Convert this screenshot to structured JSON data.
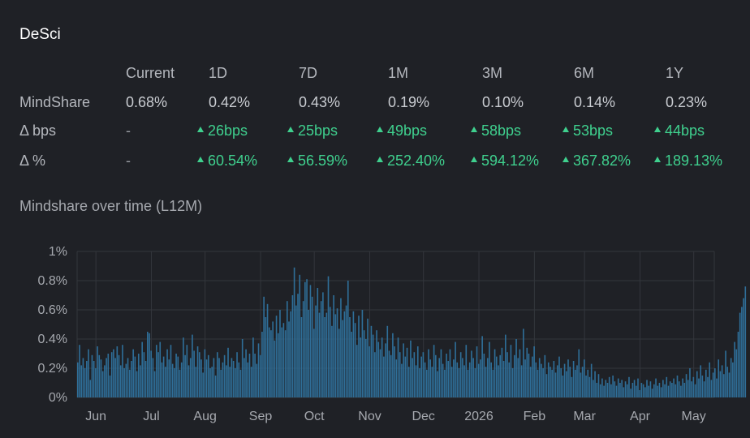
{
  "title": "DeSci",
  "table": {
    "columns": [
      "Current",
      "1D",
      "7D",
      "1M",
      "3M",
      "6M",
      "1Y"
    ],
    "rows": [
      {
        "label": "MindShare",
        "values": [
          "0.68%",
          "0.42%",
          "0.43%",
          "0.19%",
          "0.10%",
          "0.14%",
          "0.23%"
        ],
        "up": [
          false,
          false,
          false,
          false,
          false,
          false,
          false
        ]
      },
      {
        "label": "Δ bps",
        "values": [
          "-",
          "26bps",
          "25bps",
          "49bps",
          "58bps",
          "53bps",
          "44bps"
        ],
        "up": [
          false,
          true,
          true,
          true,
          true,
          true,
          true
        ]
      },
      {
        "label": "Δ %",
        "values": [
          "-",
          "60.54%",
          "56.59%",
          "252.40%",
          "594.12%",
          "367.82%",
          "189.13%"
        ],
        "up": [
          false,
          true,
          true,
          true,
          true,
          true,
          true
        ]
      }
    ]
  },
  "chart_title": "Mindshare over time (L12M)",
  "colors": {
    "background": "#1f2126",
    "bar": "#2f6f99",
    "up": "#3fd08e",
    "grid": "#33363c"
  },
  "chart_data": {
    "type": "bar",
    "title": "Mindshare over time (L12M)",
    "y_tick_labels": [
      "0%",
      "0.2%",
      "0.4%",
      "0.6%",
      "0.8%",
      "1%"
    ],
    "ylim": [
      0,
      1
    ],
    "y_unit": "%",
    "grid": true,
    "x_tick_labels": [
      "Jun",
      "Jul",
      "Aug",
      "Sep",
      "Oct",
      "Nov",
      "Dec",
      "2026",
      "Feb",
      "Mar",
      "Apr",
      "May"
    ],
    "x_tick_positions": [
      10,
      41,
      71,
      102,
      132,
      163,
      193,
      224,
      255,
      283,
      314,
      344
    ],
    "days": 356,
    "series": [
      {
        "values": [
          0.24,
          0.36,
          0.22,
          0.27,
          0.2,
          0.25,
          0.33,
          0.12,
          0.29,
          0.25,
          0.2,
          0.35,
          0.29,
          0.26,
          0.18,
          0.22,
          0.27,
          0.3,
          0.15,
          0.31,
          0.33,
          0.27,
          0.35,
          0.29,
          0.22,
          0.36,
          0.2,
          0.23,
          0.27,
          0.19,
          0.25,
          0.33,
          0.28,
          0.18,
          0.3,
          0.22,
          0.38,
          0.31,
          0.25,
          0.45,
          0.44,
          0.32,
          0.27,
          0.18,
          0.36,
          0.31,
          0.38,
          0.24,
          0.28,
          0.21,
          0.33,
          0.26,
          0.36,
          0.23,
          0.2,
          0.3,
          0.28,
          0.19,
          0.24,
          0.41,
          0.29,
          0.36,
          0.22,
          0.27,
          0.43,
          0.32,
          0.21,
          0.35,
          0.31,
          0.26,
          0.17,
          0.33,
          0.26,
          0.29,
          0.2,
          0.21,
          0.27,
          0.15,
          0.31,
          0.27,
          0.19,
          0.24,
          0.29,
          0.22,
          0.34,
          0.21,
          0.27,
          0.25,
          0.2,
          0.31,
          0.24,
          0.19,
          0.4,
          0.27,
          0.33,
          0.24,
          0.3,
          0.21,
          0.41,
          0.3,
          0.23,
          0.37,
          0.29,
          0.45,
          0.69,
          0.55,
          0.64,
          0.48,
          0.46,
          0.52,
          0.39,
          0.56,
          0.44,
          0.6,
          0.48,
          0.51,
          0.46,
          0.66,
          0.52,
          0.59,
          0.7,
          0.89,
          0.63,
          0.71,
          0.84,
          0.55,
          0.66,
          0.79,
          0.81,
          0.6,
          0.77,
          0.69,
          0.47,
          0.63,
          0.75,
          0.58,
          0.66,
          0.72,
          0.55,
          0.58,
          0.83,
          0.62,
          0.49,
          0.7,
          0.57,
          0.61,
          0.47,
          0.68,
          0.53,
          0.59,
          0.63,
          0.8,
          0.55,
          0.45,
          0.59,
          0.51,
          0.36,
          0.56,
          0.41,
          0.6,
          0.46,
          0.4,
          0.54,
          0.35,
          0.49,
          0.43,
          0.31,
          0.46,
          0.38,
          0.33,
          0.41,
          0.28,
          0.37,
          0.49,
          0.32,
          0.29,
          0.44,
          0.35,
          0.26,
          0.41,
          0.31,
          0.23,
          0.37,
          0.28,
          0.34,
          0.21,
          0.39,
          0.27,
          0.31,
          0.22,
          0.35,
          0.2,
          0.28,
          0.31,
          0.24,
          0.19,
          0.33,
          0.26,
          0.21,
          0.36,
          0.29,
          0.18,
          0.27,
          0.33,
          0.23,
          0.19,
          0.3,
          0.25,
          0.33,
          0.21,
          0.26,
          0.38,
          0.24,
          0.2,
          0.31,
          0.27,
          0.22,
          0.36,
          0.19,
          0.24,
          0.32,
          0.27,
          0.2,
          0.35,
          0.23,
          0.26,
          0.42,
          0.3,
          0.21,
          0.27,
          0.38,
          0.24,
          0.19,
          0.33,
          0.28,
          0.22,
          0.29,
          0.34,
          0.25,
          0.43,
          0.31,
          0.24,
          0.36,
          0.2,
          0.29,
          0.4,
          0.27,
          0.33,
          0.22,
          0.47,
          0.26,
          0.34,
          0.3,
          0.21,
          0.28,
          0.35,
          0.24,
          0.19,
          0.27,
          0.23,
          0.2,
          0.29,
          0.16,
          0.24,
          0.21,
          0.19,
          0.25,
          0.17,
          0.22,
          0.28,
          0.2,
          0.15,
          0.23,
          0.18,
          0.26,
          0.21,
          0.14,
          0.25,
          0.19,
          0.22,
          0.33,
          0.17,
          0.21,
          0.26,
          0.15,
          0.19,
          0.14,
          0.23,
          0.12,
          0.18,
          0.1,
          0.16,
          0.09,
          0.13,
          0.08,
          0.12,
          0.1,
          0.14,
          0.09,
          0.15,
          0.11,
          0.08,
          0.13,
          0.1,
          0.12,
          0.07,
          0.11,
          0.09,
          0.14,
          0.06,
          0.1,
          0.12,
          0.08,
          0.13,
          0.05,
          0.1,
          0.09,
          0.07,
          0.12,
          0.08,
          0.11,
          0.06,
          0.09,
          0.13,
          0.08,
          0.1,
          0.07,
          0.12,
          0.09,
          0.14,
          0.08,
          0.11,
          0.1,
          0.13,
          0.09,
          0.15,
          0.11,
          0.08,
          0.13,
          0.1,
          0.16,
          0.12,
          0.2,
          0.11,
          0.14,
          0.09,
          0.18,
          0.13,
          0.22,
          0.15,
          0.11,
          0.19,
          0.14,
          0.24,
          0.12,
          0.17,
          0.2,
          0.13,
          0.26,
          0.18,
          0.22,
          0.16,
          0.32,
          0.21,
          0.17,
          0.27,
          0.24,
          0.38,
          0.33,
          0.45,
          0.58,
          0.62,
          0.68,
          0.76
        ]
      }
    ]
  }
}
